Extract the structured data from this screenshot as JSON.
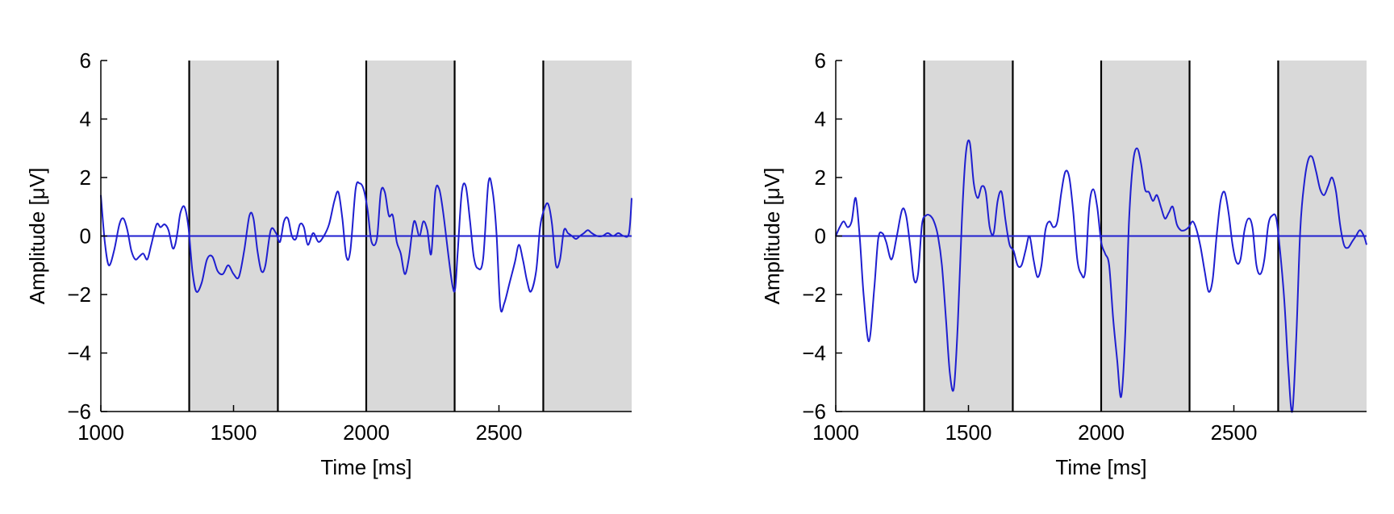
{
  "chart_data": [
    {
      "type": "line",
      "xlabel": "Time [ms]",
      "ylabel": "Amplitude [μV]",
      "xlim": [
        1000,
        3000
      ],
      "ylim": [
        -6,
        6
      ],
      "xticks": [
        1000,
        1500,
        2000,
        2500
      ],
      "yticks": [
        -6,
        -4,
        -2,
        0,
        2,
        4,
        6
      ],
      "shaded_intervals": [
        [
          1333,
          1667
        ],
        [
          2000,
          2333
        ],
        [
          2667,
          3000
        ]
      ],
      "boundary_lines": [
        1333,
        1667,
        2000,
        2333,
        2667
      ],
      "reference_line": 0,
      "line_color": "#1f1fd0",
      "band_color": "#d9d9d9",
      "series": [
        {
          "x": [
            1000,
            1015,
            1030,
            1050,
            1070,
            1085,
            1100,
            1115,
            1130,
            1145,
            1160,
            1175,
            1190,
            1210,
            1225,
            1240,
            1255,
            1270,
            1280,
            1290,
            1300,
            1315,
            1330,
            1345,
            1360,
            1380,
            1400,
            1420,
            1440,
            1460,
            1480,
            1500,
            1520,
            1540,
            1560,
            1575,
            1590,
            1605,
            1620,
            1640,
            1660,
            1675,
            1690,
            1705,
            1720,
            1735,
            1750,
            1765,
            1780,
            1800,
            1820,
            1840,
            1860,
            1880,
            1895,
            1910,
            1925,
            1940,
            1960,
            1975,
            1990,
            2005,
            2020,
            2040,
            2055,
            2070,
            2085,
            2100,
            2115,
            2130,
            2145,
            2160,
            2180,
            2200,
            2215,
            2230,
            2245,
            2260,
            2275,
            2290,
            2310,
            2325,
            2335,
            2345,
            2360,
            2375,
            2390,
            2405,
            2420,
            2440,
            2460,
            2475,
            2490,
            2505,
            2520,
            2540,
            2560,
            2575,
            2590,
            2605,
            2620,
            2640,
            2655,
            2670,
            2685,
            2700,
            2715,
            2730,
            2745,
            2760,
            2775,
            2790,
            2805,
            2820,
            2835,
            2850,
            2870,
            2890,
            2910,
            2930,
            2950,
            2970,
            2990,
            3000
          ],
          "y": [
            1.4,
            -0.2,
            -1.0,
            -0.5,
            0.4,
            0.6,
            0.2,
            -0.5,
            -0.8,
            -0.7,
            -0.6,
            -0.8,
            -0.3,
            0.4,
            0.3,
            0.4,
            0.2,
            -0.4,
            -0.3,
            0.2,
            0.8,
            1.0,
            0.3,
            -1.2,
            -1.9,
            -1.6,
            -0.8,
            -0.7,
            -1.2,
            -1.3,
            -1.0,
            -1.3,
            -1.4,
            -0.5,
            0.7,
            0.6,
            -0.5,
            -1.2,
            -1.0,
            0.2,
            0.1,
            -0.2,
            0.5,
            0.6,
            0.0,
            -0.1,
            0.4,
            0.3,
            -0.3,
            0.1,
            -0.2,
            0.0,
            0.4,
            1.2,
            1.5,
            0.6,
            -0.7,
            -0.5,
            1.6,
            1.8,
            1.6,
            0.9,
            -0.2,
            -0.1,
            1.5,
            1.5,
            0.7,
            0.7,
            -0.2,
            -0.6,
            -1.3,
            -0.8,
            0.5,
            0.0,
            0.5,
            0.2,
            -0.6,
            1.5,
            1.6,
            0.8,
            -0.7,
            -1.7,
            -1.8,
            -0.5,
            1.5,
            1.7,
            0.6,
            -0.7,
            -1.1,
            -0.8,
            1.8,
            1.6,
            0.2,
            -2.4,
            -2.3,
            -1.6,
            -0.9,
            -0.3,
            -0.8,
            -1.5,
            -1.9,
            -1.2,
            0.3,
            0.9,
            1.1,
            0.4,
            -1.0,
            -0.8,
            0.2,
            0.1,
            0.0,
            -0.1,
            0.0,
            0.1,
            0.2,
            0.1,
            0.0,
            0.0,
            0.1,
            0.0,
            0.1,
            0.0,
            0.1,
            1.3
          ]
        }
      ]
    },
    {
      "type": "line",
      "xlabel": "Time [ms]",
      "ylabel": "Amplitude [μV]",
      "xlim": [
        1000,
        3000
      ],
      "ylim": [
        -6,
        6
      ],
      "xticks": [
        1000,
        1500,
        2000,
        2500
      ],
      "yticks": [
        -6,
        -4,
        -2,
        0,
        2,
        4,
        6
      ],
      "shaded_intervals": [
        [
          1333,
          1667
        ],
        [
          2000,
          2333
        ],
        [
          2667,
          3000
        ]
      ],
      "boundary_lines": [
        1333,
        1667,
        2000,
        2333,
        2667
      ],
      "reference_line": 0,
      "line_color": "#1f1fd0",
      "band_color": "#d9d9d9",
      "series": [
        {
          "x": [
            1000,
            1015,
            1030,
            1045,
            1060,
            1075,
            1090,
            1105,
            1125,
            1145,
            1160,
            1175,
            1190,
            1210,
            1230,
            1250,
            1265,
            1280,
            1295,
            1310,
            1325,
            1340,
            1355,
            1370,
            1385,
            1400,
            1415,
            1430,
            1445,
            1460,
            1475,
            1490,
            1505,
            1520,
            1535,
            1550,
            1565,
            1580,
            1595,
            1610,
            1625,
            1640,
            1655,
            1670,
            1685,
            1700,
            1715,
            1730,
            1745,
            1760,
            1775,
            1790,
            1805,
            1820,
            1835,
            1850,
            1865,
            1880,
            1895,
            1910,
            1925,
            1940,
            1955,
            1970,
            1985,
            2000,
            2015,
            2030,
            2045,
            2060,
            2075,
            2090,
            2105,
            2120,
            2135,
            2150,
            2165,
            2180,
            2195,
            2210,
            2225,
            2240,
            2255,
            2270,
            2285,
            2300,
            2315,
            2330,
            2345,
            2360,
            2375,
            2390,
            2405,
            2420,
            2435,
            2450,
            2465,
            2480,
            2495,
            2510,
            2525,
            2540,
            2555,
            2570,
            2585,
            2600,
            2615,
            2630,
            2645,
            2660,
            2675,
            2690,
            2705,
            2720,
            2735,
            2750,
            2765,
            2780,
            2795,
            2810,
            2825,
            2840,
            2855,
            2870,
            2885,
            2900,
            2915,
            2930,
            2945,
            2960,
            2975,
            2990,
            3000
          ],
          "y": [
            0.0,
            0.3,
            0.5,
            0.3,
            0.5,
            1.3,
            0.0,
            -2.0,
            -3.6,
            -1.8,
            -0.1,
            0.1,
            -0.2,
            -0.8,
            0.0,
            0.9,
            0.7,
            -0.3,
            -1.5,
            -1.3,
            0.4,
            0.7,
            0.7,
            0.5,
            0.0,
            -1.0,
            -2.8,
            -4.7,
            -5.2,
            -3.0,
            0.5,
            2.8,
            3.2,
            1.8,
            1.3,
            1.7,
            1.5,
            0.3,
            0.1,
            1.2,
            1.5,
            0.5,
            -0.3,
            -0.5,
            -1.0,
            -1.0,
            -0.5,
            0.0,
            -0.8,
            -1.4,
            -1.0,
            0.2,
            0.5,
            0.3,
            0.5,
            1.5,
            2.2,
            2.0,
            0.8,
            -0.8,
            -1.3,
            -1.2,
            1.0,
            1.6,
            1.0,
            -0.2,
            -0.6,
            -1.0,
            -2.8,
            -4.2,
            -5.5,
            -3.5,
            0.5,
            2.5,
            3.0,
            2.5,
            1.6,
            1.5,
            1.2,
            1.4,
            1.0,
            0.6,
            0.8,
            1.0,
            0.4,
            0.2,
            0.2,
            0.3,
            0.5,
            0.2,
            -0.4,
            -1.2,
            -1.9,
            -1.5,
            0.0,
            1.2,
            1.5,
            0.8,
            -0.3,
            -0.9,
            -0.8,
            0.2,
            0.6,
            0.3,
            -1.0,
            -1.3,
            -0.8,
            0.4,
            0.7,
            0.6,
            -0.6,
            -2.2,
            -4.5,
            -6.0,
            -3.5,
            0.2,
            1.8,
            2.6,
            2.7,
            2.2,
            1.6,
            1.4,
            1.7,
            2.0,
            1.5,
            0.4,
            -0.3,
            -0.4,
            -0.2,
            0.0,
            0.2,
            0.0,
            -0.3
          ]
        }
      ]
    }
  ]
}
